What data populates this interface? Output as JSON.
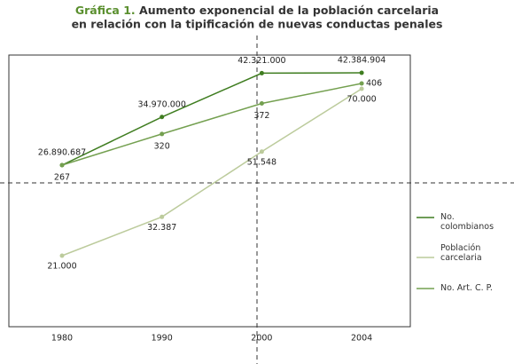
{
  "chart_data": {
    "type": "line",
    "label": "Gráfica 1.",
    "title": [
      "Aumento exponencial de la población carcelaria",
      "en relación con la tipificación de nuevas conductas penales"
    ],
    "categories": [
      "1980",
      "1990",
      "2000",
      "2004"
    ],
    "series": [
      {
        "name": "No. colombianos",
        "color": "#3f7d20",
        "values": [
          26890687,
          34970000,
          42321000,
          42384904
        ],
        "value_labels": [
          "26.890.687",
          "34.970.000",
          "42.321.000",
          "42.384.904"
        ]
      },
      {
        "name": "Población carcelaria",
        "color": "#bccb9c",
        "values": [
          21000,
          32387,
          51548,
          70000
        ],
        "value_labels": [
          "21.000",
          "32.387",
          "51.548",
          "70.000"
        ]
      },
      {
        "name": "No. Art. C. P.",
        "color": "#74a050",
        "values": [
          267,
          320,
          372,
          406
        ]
      }
    ]
  }
}
